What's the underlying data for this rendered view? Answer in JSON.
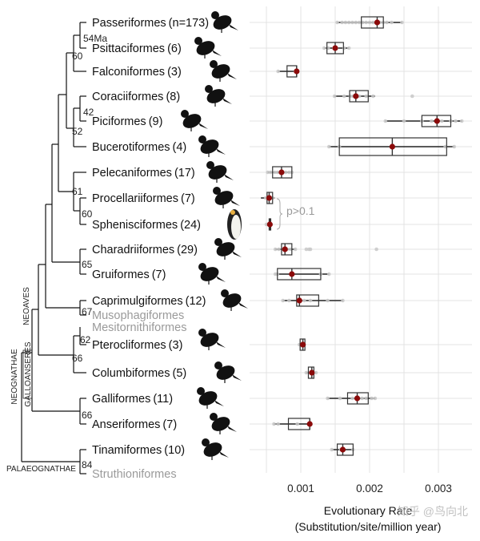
{
  "chart_data": {
    "type": "boxplot",
    "title": "",
    "xlabel": "Evolutionary Rate\n(Substitution/site/million year)",
    "xlabel_lines": [
      "Evolutionary Rate",
      "(Substitution/site/million year)"
    ],
    "ylabel": "",
    "xlim": [
      0.00045,
      0.0034
    ],
    "x_ticks": [
      0.001,
      0.002,
      0.003
    ],
    "x_tick_labels": [
      "0.001",
      "0.002",
      "0.003"
    ],
    "grid": true,
    "annotation": "p>0.1",
    "watermark": "知乎 @鸟向北",
    "rows": [
      {
        "order": "Passeriformes",
        "count": "(n=173)",
        "gray": false,
        "whisker": [
          0.00153,
          0.00247
        ],
        "box": [
          0.00188,
          0.0022
        ],
        "median": 0.00211,
        "mean": 0.00211,
        "points": [
          0.00153,
          0.0016,
          0.00165,
          0.0017,
          0.00175,
          0.0018,
          0.00185,
          0.0019,
          0.00195,
          0.002,
          0.00205,
          0.0021,
          0.00215,
          0.0022,
          0.00225,
          0.00232,
          0.00247
        ]
      },
      {
        "order": "Psittaciformes",
        "count": "(6)",
        "gray": false,
        "whisker": [
          0.00134,
          0.0017
        ],
        "box": [
          0.00138,
          0.00162
        ],
        "median": 0.0015,
        "mean": 0.0015,
        "points": [
          0.00134,
          0.0014,
          0.00148,
          0.00152,
          0.00163,
          0.0017
        ]
      },
      {
        "order": "Falconiformes",
        "count": "(3)",
        "gray": false,
        "whisker": [
          0.00067,
          0.00093
        ],
        "box": [
          0.0008,
          0.00094
        ],
        "median": 0.00094,
        "mean": 0.00094,
        "points": [
          0.00067,
          0.00092,
          0.00094
        ]
      },
      {
        "order": "Coraciiformes",
        "count": "(8)",
        "gray": false,
        "whisker": [
          0.00149,
          0.00208
        ],
        "box": [
          0.00171,
          0.00198
        ],
        "median": 0.0018,
        "mean": 0.0018,
        "points": [
          0.00149,
          0.00163,
          0.00172,
          0.00176,
          0.00185,
          0.00195,
          0.00205,
          0.00262
        ]
      },
      {
        "order": "Piciformes",
        "count": "(9)",
        "gray": false,
        "whisker": [
          0.00223,
          0.00334
        ],
        "box": [
          0.00276,
          0.00318
        ],
        "median": 0.00298,
        "mean": 0.00298,
        "points": [
          0.00223,
          0.0025,
          0.00276,
          0.0029,
          0.00298,
          0.00305,
          0.00318,
          0.00325,
          0.00334
        ]
      },
      {
        "order": "Bucerotiformes",
        "count": "(4)",
        "gray": false,
        "whisker": [
          0.00141,
          0.00323
        ],
        "box": [
          0.00156,
          0.00312
        ],
        "median": 0.00233,
        "mean": 0.00233,
        "points": [
          0.00141,
          0.00156,
          0.0031,
          0.00323
        ]
      },
      {
        "order": "Pelecaniformes",
        "count": "(17)",
        "gray": false,
        "whisker": [
          0.00052,
          0.00087
        ],
        "box": [
          0.00059,
          0.00087
        ],
        "median": 0.00072,
        "mean": 0.00072,
        "points": [
          0.00052,
          0.00056,
          0.00062,
          0.00066,
          0.00072,
          0.00078,
          0.00083,
          0.00087
        ]
      },
      {
        "order": "Procellariiformes",
        "count": "(7)",
        "gray": false,
        "whisker": [
          0.00042,
          0.00062
        ],
        "box": [
          0.00051,
          0.00059
        ],
        "median": 0.00054,
        "mean": 0.00054,
        "points": [
          0.00049,
          0.00052,
          0.00054,
          0.00056,
          0.00059
        ]
      },
      {
        "order": "Sphenisciformes",
        "count": "(24)",
        "gray": false,
        "whisker": [
          0.00054,
          0.00056
        ],
        "box": [
          0.00054,
          0.00056
        ],
        "median": 0.00055,
        "mean": 0.00055,
        "points": [
          0.0005,
          0.00053,
          0.00055,
          0.00057
        ]
      },
      {
        "order": "Charadriiformes",
        "count": "(29)",
        "gray": false,
        "whisker": [
          0.00063,
          0.00092
        ],
        "box": [
          0.00072,
          0.00087
        ],
        "median": 0.00077,
        "mean": 0.00077,
        "points": [
          0.00063,
          0.00068,
          0.00074,
          0.0008,
          0.00085,
          0.00092,
          0.00108,
          0.00112,
          0.00114,
          0.0021
        ]
      },
      {
        "order": "Gruiformes",
        "count": "(7)",
        "gray": false,
        "whisker": [
          0.00063,
          0.00141
        ],
        "box": [
          0.00066,
          0.00129
        ],
        "median": 0.00087,
        "mean": 0.00087,
        "points": [
          0.00063,
          0.00066,
          0.00087,
          0.00129,
          0.00141
        ]
      },
      {
        "order": "Caprimulgiformes",
        "count": "(12)",
        "gray": false,
        "whisker": [
          0.00074,
          0.00161
        ],
        "box": [
          0.00094,
          0.00126
        ],
        "median": 0.00098,
        "mean": 0.00098,
        "points": [
          0.00074,
          0.00083,
          0.00097,
          0.00105,
          0.00114,
          0.00139,
          0.00161
        ]
      },
      {
        "order": "Musophagiformes",
        "count": "",
        "gray": true,
        "no_box": true
      },
      {
        "order": "Mesitornithiformes",
        "count": "",
        "gray": true,
        "no_box": true
      },
      {
        "order": "Pterocliformes",
        "count": "(3)",
        "gray": false,
        "whisker": [
          0.00098,
          0.00105
        ],
        "box": [
          0.00099,
          0.00106
        ],
        "median": 0.00103,
        "mean": 0.00103,
        "points": [
          0.00098,
          0.00103,
          0.00105
        ]
      },
      {
        "order": "Columbiformes",
        "count": "(5)",
        "gray": false,
        "whisker": [
          0.00108,
          0.00122
        ],
        "box": [
          0.00111,
          0.00119
        ],
        "median": 0.00116,
        "mean": 0.00116,
        "points": [
          0.00108,
          0.00114,
          0.00116,
          0.00119,
          0.00122
        ]
      },
      {
        "order": "Galliformes",
        "count": "(11)",
        "gray": false,
        "whisker": [
          0.00139,
          0.00208
        ],
        "box": [
          0.00168,
          0.00198
        ],
        "median": 0.00182,
        "mean": 0.00182,
        "points": [
          0.00139,
          0.00157,
          0.00175,
          0.00182,
          0.00189,
          0.00195,
          0.00203,
          0.00208
        ]
      },
      {
        "order": "Anseriformes",
        "count": "(7)",
        "gray": false,
        "whisker": [
          0.00061,
          0.00113
        ],
        "box": [
          0.00082,
          0.00113
        ],
        "median": 0.00113,
        "mean": 0.00113,
        "points": [
          0.00061,
          0.00067,
          0.00095,
          0.00113
        ]
      },
      {
        "order": "Tinamiformes",
        "count": "(10)",
        "gray": false,
        "whisker": [
          0.00145,
          0.00176
        ],
        "box": [
          0.00153,
          0.00176
        ],
        "median": 0.00161,
        "mean": 0.00161,
        "points": [
          0.00145,
          0.00158,
          0.00162,
          0.00176
        ]
      },
      {
        "order": "Struthioniformes",
        "count": "",
        "gray": true,
        "no_box": true
      }
    ]
  },
  "tree": {
    "node_labels": [
      "54Ma",
      "60",
      "42",
      "52",
      "61",
      "60",
      "65",
      "67",
      "62",
      "66",
      "66",
      "84"
    ],
    "clade_labels": {
      "neoaves": "NEOAVES",
      "neognathae": "NEOGNATHAE",
      "galloanseres": "GALLOANSERES",
      "palaeognathae": "PALAEOGNATHAE"
    }
  },
  "colors": {
    "mean_dot": "#8b0a0a",
    "grid": "#e3e3e3",
    "box_stroke": "#333333",
    "gray_text": "#9a9a9a",
    "point": "#c8c8c8",
    "text": "#111111"
  }
}
